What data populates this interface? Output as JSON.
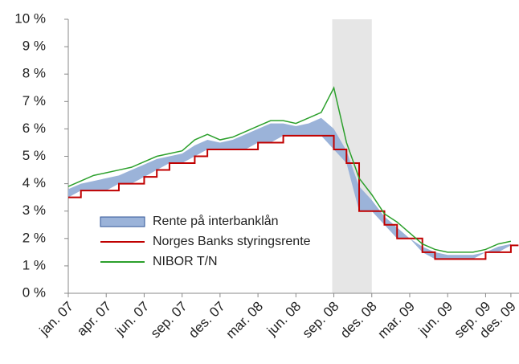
{
  "chart_data": {
    "type": "line",
    "categories": [
      "jan. 07",
      null,
      null,
      "apr. 07",
      null,
      null,
      "jun. 07",
      null,
      null,
      "sep. 07",
      null,
      null,
      "des. 07",
      null,
      null,
      "mar. 08",
      null,
      null,
      "jun. 08",
      null,
      null,
      "sep. 08",
      null,
      null,
      "des. 08",
      null,
      null,
      "mar. 09",
      null,
      null,
      "jun. 09",
      null,
      null,
      "sep. 09",
      null,
      "des. 09"
    ],
    "series": [
      {
        "name": "Rente på interbanklån",
        "color": "#9bb3d9",
        "kind": "area",
        "values": [
          3.8,
          4.0,
          4.1,
          4.2,
          4.3,
          4.5,
          4.7,
          4.9,
          5.0,
          5.1,
          5.4,
          5.6,
          5.5,
          5.6,
          5.8,
          6.0,
          6.2,
          6.2,
          6.1,
          6.2,
          6.4,
          6.0,
          5.2,
          3.9,
          3.4,
          2.8,
          2.4,
          2.0,
          1.7,
          1.5,
          1.4,
          1.4,
          1.4,
          1.5,
          1.7,
          1.8
        ]
      },
      {
        "name": "Norges Banks styringsrente",
        "color": "#c00000",
        "kind": "step",
        "values": [
          3.5,
          3.75,
          3.75,
          3.75,
          4.0,
          4.0,
          4.25,
          4.5,
          4.75,
          4.75,
          5.0,
          5.25,
          5.25,
          5.25,
          5.25,
          5.5,
          5.5,
          5.75,
          5.75,
          5.75,
          5.75,
          5.25,
          4.75,
          3.0,
          3.0,
          2.5,
          2.0,
          2.0,
          1.5,
          1.25,
          1.25,
          1.25,
          1.25,
          1.5,
          1.5,
          1.75
        ]
      },
      {
        "name": "NIBOR  T/N",
        "color": "#2ca02c",
        "kind": "line",
        "values": [
          3.9,
          4.1,
          4.3,
          4.4,
          4.5,
          4.6,
          4.8,
          5.0,
          5.1,
          5.2,
          5.6,
          5.8,
          5.6,
          5.7,
          5.9,
          6.1,
          6.3,
          6.3,
          6.2,
          6.4,
          6.6,
          7.5,
          5.5,
          4.2,
          3.6,
          2.9,
          2.6,
          2.2,
          1.8,
          1.6,
          1.5,
          1.5,
          1.5,
          1.6,
          1.8,
          1.9
        ]
      }
    ],
    "shade": {
      "from": "sep. 08",
      "to": "des. 08",
      "color": "#e6e6e6"
    },
    "ylim": [
      0,
      10
    ],
    "yticks": [
      {
        "value": 0,
        "label": "0 %"
      },
      {
        "value": 1,
        "label": "1 %"
      },
      {
        "value": 2,
        "label": "2 %"
      },
      {
        "value": 3,
        "label": "3 %"
      },
      {
        "value": 4,
        "label": "4 %"
      },
      {
        "value": 5,
        "label": "5 %"
      },
      {
        "value": 6,
        "label": "6 %"
      },
      {
        "value": 7,
        "label": "7 %"
      },
      {
        "value": 8,
        "label": "8 %"
      },
      {
        "value": 9,
        "label": "9 %"
      },
      {
        "value": 10,
        "label": "10 %"
      }
    ],
    "legend": "lower-left"
  }
}
